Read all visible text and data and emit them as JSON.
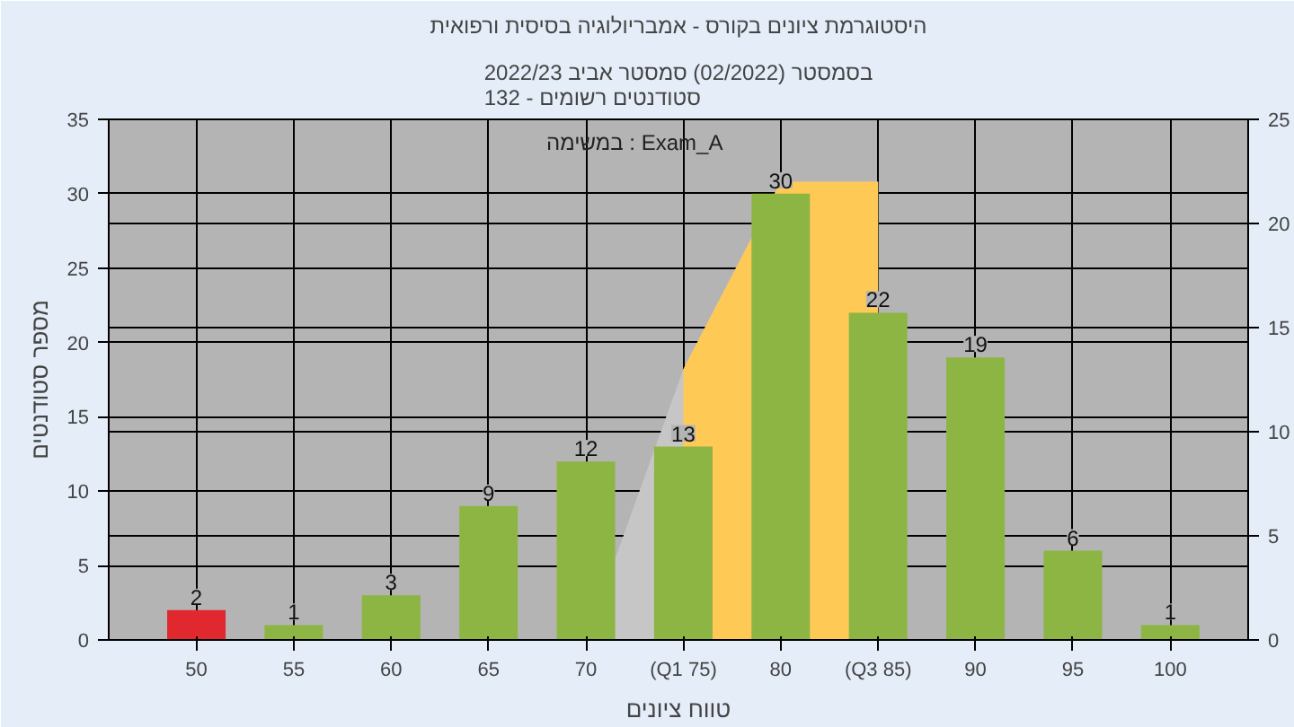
{
  "chart_data": {
    "type": "bar",
    "title": "היסטוגרמת ציונים בקורס - אמבריולוגיה בסיסית ורפואית",
    "subtitle": "בסמסטר (02/2022) סמסטר אביב 2022/23\nסטודנטים רשומים - 132",
    "xlabel": "טווח ציונים",
    "ylabel": "מספר סטודנטים",
    "annotations": [
      "במשימה : Exam_A"
    ],
    "categories": [
      "50",
      "55",
      "60",
      "65",
      "70",
      "(Q1 75)",
      "80",
      "(Q3 85)",
      "90",
      "95",
      "100"
    ],
    "series": [
      {
        "type": "area",
        "axis": "y2",
        "color": "#c6c6c6",
        "values": [
          null,
          null,
          null,
          null,
          0,
          13,
          22,
          22,
          null,
          null,
          null
        ]
      },
      {
        "type": "area",
        "axis": "y2",
        "color": "#ffc955",
        "values": [
          null,
          null,
          null,
          null,
          null,
          13,
          22,
          22,
          null,
          null,
          null
        ]
      },
      {
        "value_labels": [
          "2",
          "1",
          "3",
          "9",
          "12",
          "13",
          "30",
          "22",
          "19",
          "6",
          "1"
        ],
        "colors": [
          "#e0282e",
          "#8db543",
          "#8db543",
          "#8db543",
          "#8db543",
          "#8db543",
          "#8db543",
          "#8db543",
          "#8db543",
          "#8db543",
          "#8db543"
        ],
        "values": [
          2,
          1,
          3,
          9,
          12,
          13,
          30,
          22,
          19,
          6,
          1
        ]
      }
    ],
    "ylim": [
      0,
      35
    ],
    "yticks": [
      0,
      5,
      10,
      15,
      20,
      25,
      30,
      35
    ],
    "y2lim": [
      0,
      25
    ],
    "y2ticks": [
      0,
      5,
      10,
      15,
      20,
      25
    ],
    "grid": true
  }
}
